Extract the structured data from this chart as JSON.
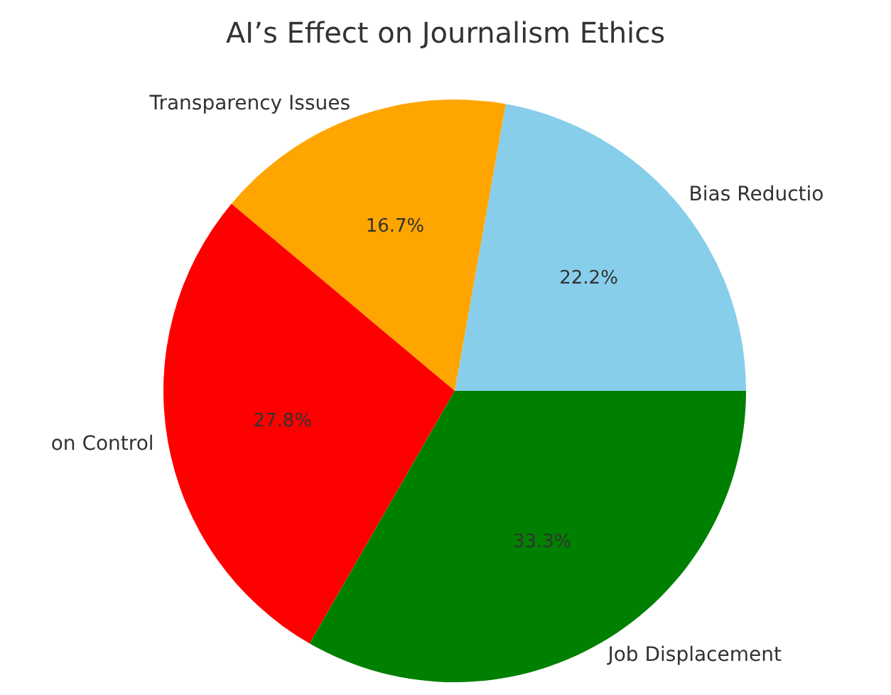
{
  "chart_data": {
    "type": "pie",
    "title": "AI’s Effect on Journalism Ethics",
    "categories": [
      "Bias Reductio",
      "Transparency Issues",
      "on Control",
      "Job Displacement"
    ],
    "values": [
      22.2,
      16.7,
      27.8,
      33.3
    ],
    "colors": [
      "#87ceeb",
      "#ffa500",
      "#ff0000",
      "#008000"
    ],
    "value_labels": [
      "22.2%",
      "16.7%",
      "27.8%",
      "33.3%"
    ],
    "legend": false
  }
}
